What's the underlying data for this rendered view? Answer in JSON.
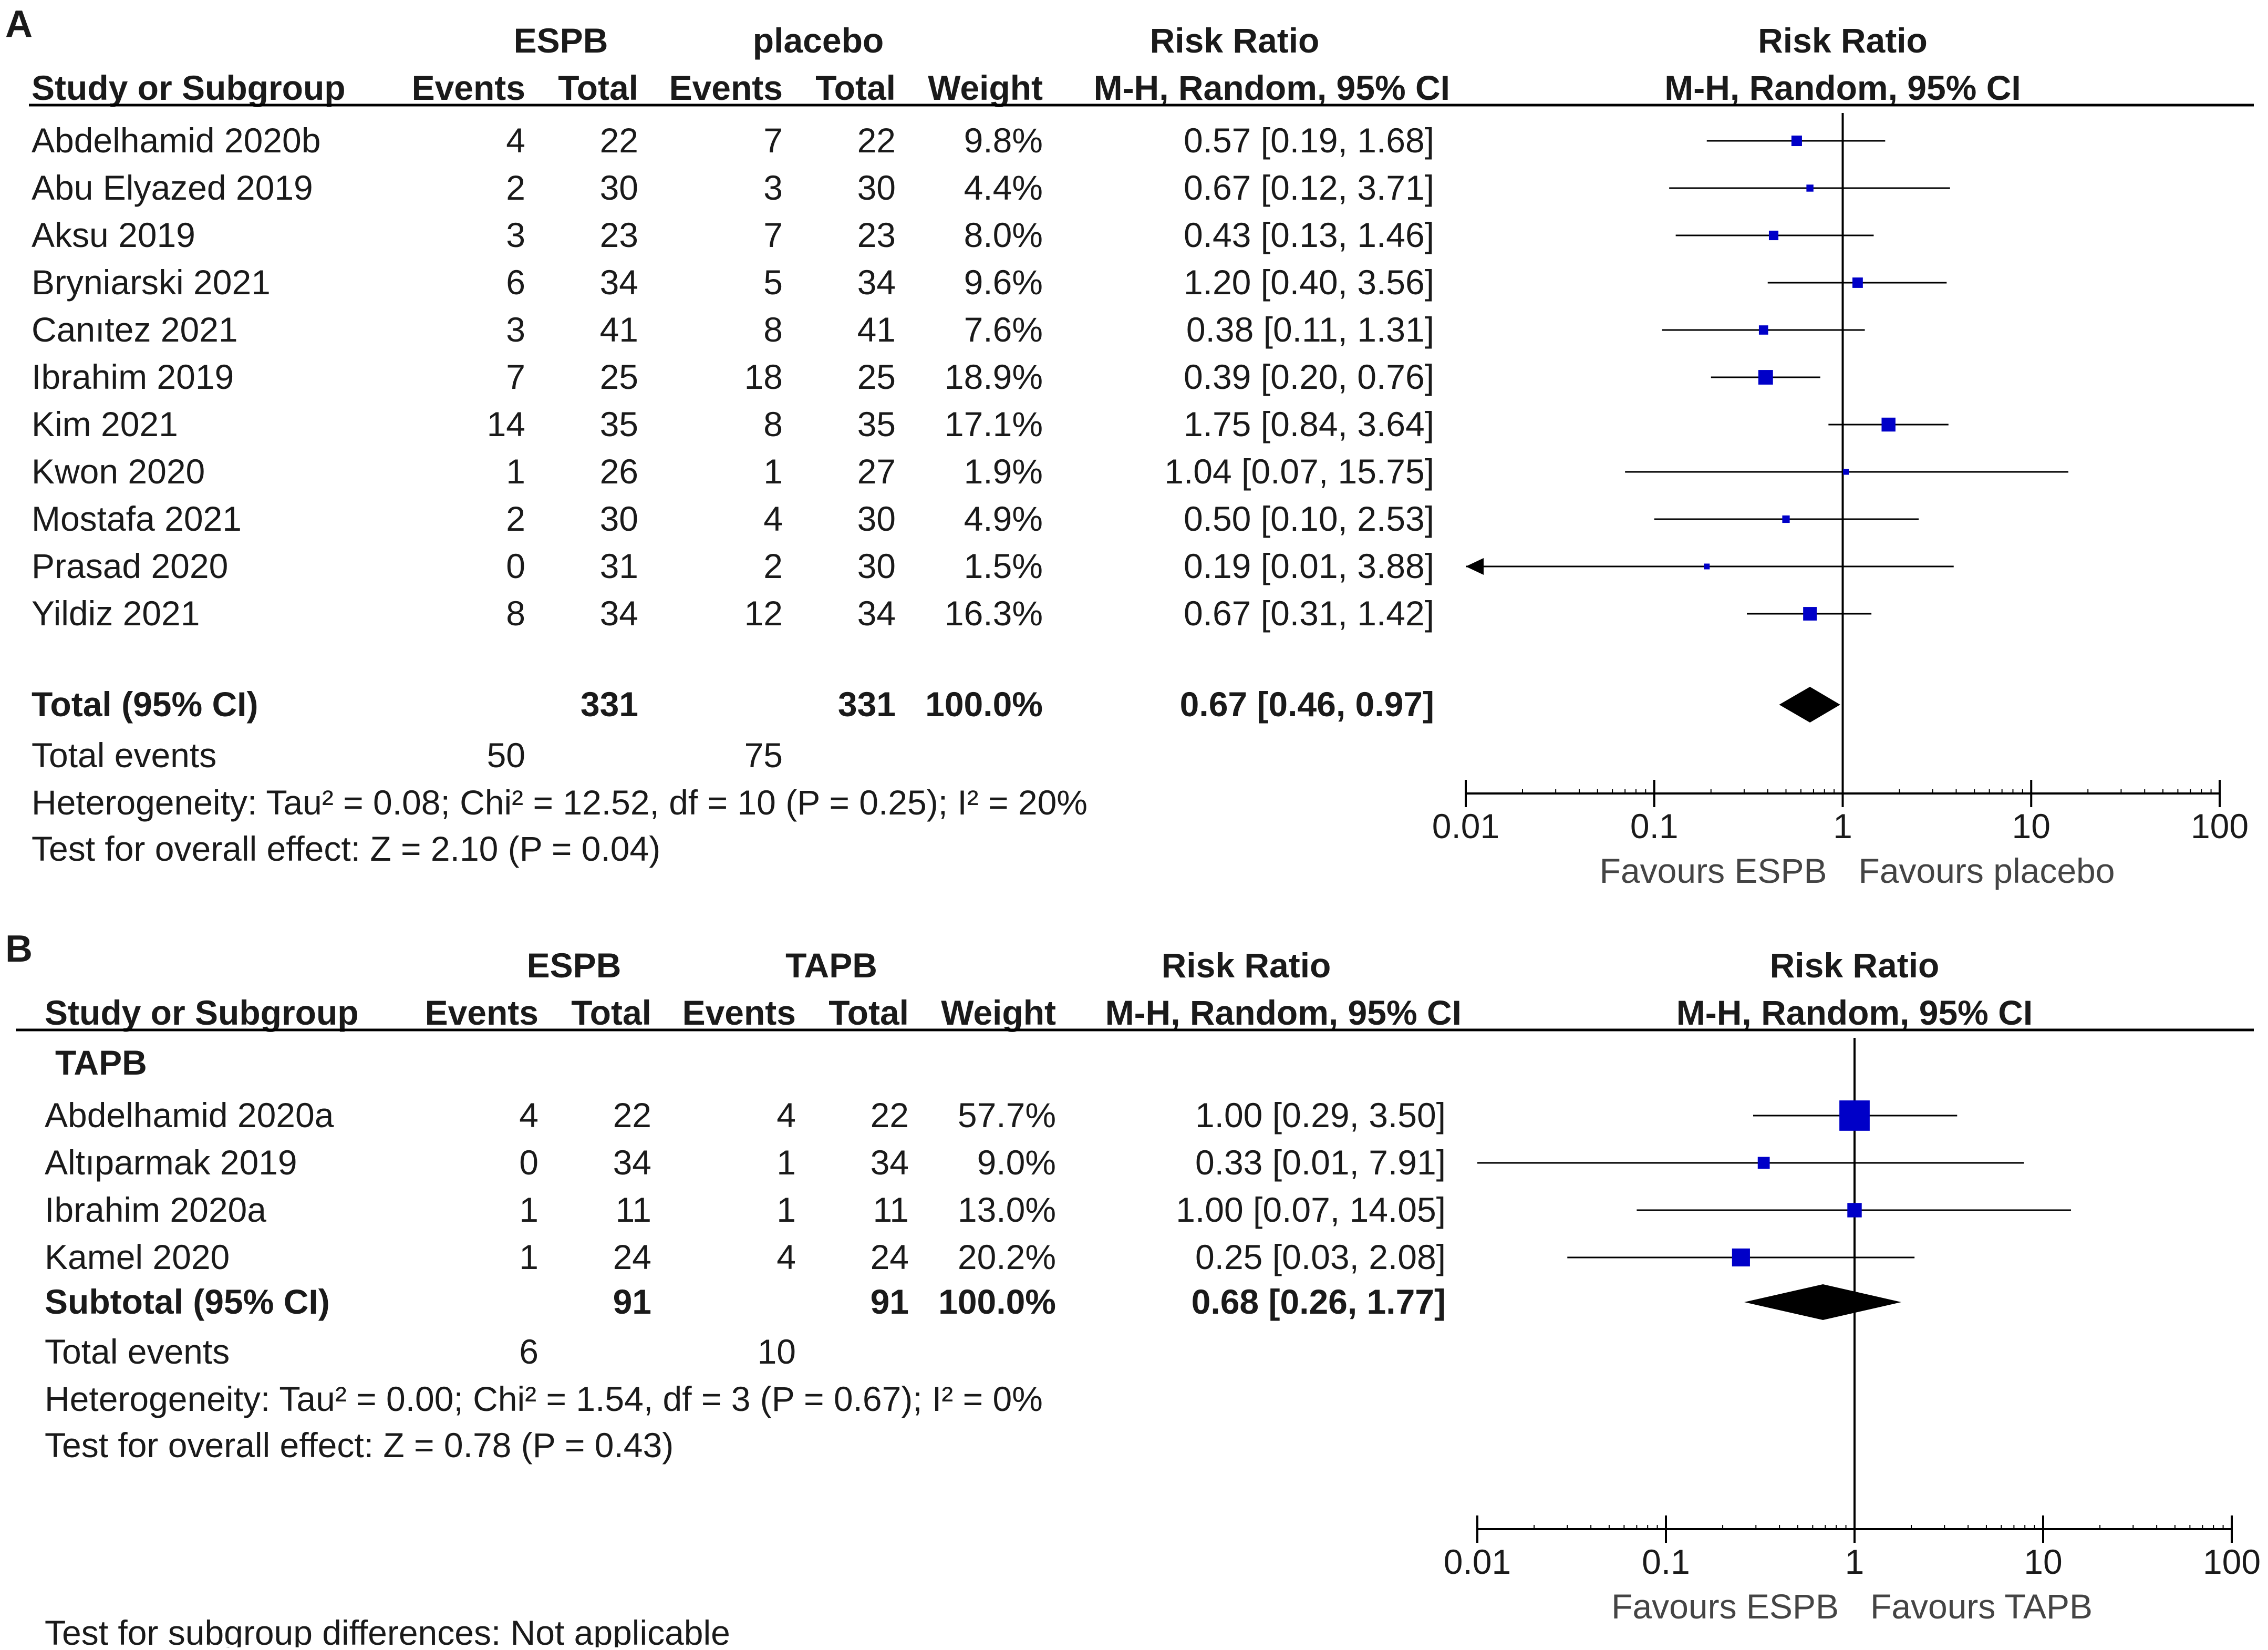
{
  "panels": [
    {
      "label": "A",
      "group1_name": "ESPB",
      "group2_name": "placebo",
      "rr_title": "Risk Ratio",
      "plot_title": "Risk Ratio",
      "headers": {
        "study": "Study or Subgroup",
        "events": "Events",
        "total": "Total",
        "weight": "Weight",
        "method": "M-H, Random, 95% CI",
        "plot_method": "M-H, Random, 95% CI"
      },
      "subgroup_label": "",
      "rows": [
        {
          "study": "Abdelhamid 2020b",
          "e1": "4",
          "t1": "22",
          "e2": "7",
          "t2": "22",
          "weight": "9.8%",
          "ci": "0.57 [0.19, 1.68]",
          "rr": 0.57,
          "lo": 0.19,
          "hi": 1.68,
          "w": 9.8
        },
        {
          "study": "Abu Elyazed 2019",
          "e1": "2",
          "t1": "30",
          "e2": "3",
          "t2": "30",
          "weight": "4.4%",
          "ci": "0.67 [0.12, 3.71]",
          "rr": 0.67,
          "lo": 0.12,
          "hi": 3.71,
          "w": 4.4
        },
        {
          "study": "Aksu 2019",
          "e1": "3",
          "t1": "23",
          "e2": "7",
          "t2": "23",
          "weight": "8.0%",
          "ci": "0.43 [0.13, 1.46]",
          "rr": 0.43,
          "lo": 0.13,
          "hi": 1.46,
          "w": 8.0
        },
        {
          "study": "Bryniarski 2021",
          "e1": "6",
          "t1": "34",
          "e2": "5",
          "t2": "34",
          "weight": "9.6%",
          "ci": "1.20 [0.40, 3.56]",
          "rr": 1.2,
          "lo": 0.4,
          "hi": 3.56,
          "w": 9.6
        },
        {
          "study": "Canıtez 2021",
          "e1": "3",
          "t1": "41",
          "e2": "8",
          "t2": "41",
          "weight": "7.6%",
          "ci": "0.38 [0.11, 1.31]",
          "rr": 0.38,
          "lo": 0.11,
          "hi": 1.31,
          "w": 7.6
        },
        {
          "study": "Ibrahim 2019",
          "e1": "7",
          "t1": "25",
          "e2": "18",
          "t2": "25",
          "weight": "18.9%",
          "ci": "0.39 [0.20, 0.76]",
          "rr": 0.39,
          "lo": 0.2,
          "hi": 0.76,
          "w": 18.9
        },
        {
          "study": "Kim 2021",
          "e1": "14",
          "t1": "35",
          "e2": "8",
          "t2": "35",
          "weight": "17.1%",
          "ci": "1.75 [0.84, 3.64]",
          "rr": 1.75,
          "lo": 0.84,
          "hi": 3.64,
          "w": 17.1
        },
        {
          "study": "Kwon 2020",
          "e1": "1",
          "t1": "26",
          "e2": "1",
          "t2": "27",
          "weight": "1.9%",
          "ci": "1.04 [0.07, 15.75]",
          "rr": 1.04,
          "lo": 0.07,
          "hi": 15.75,
          "w": 1.9
        },
        {
          "study": "Mostafa 2021",
          "e1": "2",
          "t1": "30",
          "e2": "4",
          "t2": "30",
          "weight": "4.9%",
          "ci": "0.50 [0.10, 2.53]",
          "rr": 0.5,
          "lo": 0.1,
          "hi": 2.53,
          "w": 4.9
        },
        {
          "study": "Prasad 2020",
          "e1": "0",
          "t1": "31",
          "e2": "2",
          "t2": "30",
          "weight": "1.5%",
          "ci": "0.19 [0.01, 3.88]",
          "rr": 0.19,
          "lo": 0.01,
          "hi": 3.88,
          "w": 1.5
        },
        {
          "study": "Yildiz 2021",
          "e1": "8",
          "t1": "34",
          "e2": "12",
          "t2": "34",
          "weight": "16.3%",
          "ci": "0.67 [0.31, 1.42]",
          "rr": 0.67,
          "lo": 0.31,
          "hi": 1.42,
          "w": 16.3
        }
      ],
      "total": {
        "label": "Total (95% CI)",
        "t1": "331",
        "t2": "331",
        "weight": "100.0%",
        "ci": "0.67 [0.46, 0.97]",
        "rr": 0.67,
        "lo": 0.46,
        "hi": 0.97
      },
      "total_events": {
        "label": "Total events",
        "e1": "50",
        "e2": "75"
      },
      "heterogeneity": "Heterogeneity: Tau² = 0.08; Chi² = 12.52, df = 10 (P = 0.25); I² = 20%",
      "overall_effect": "Test for overall effect: Z = 2.10 (P = 0.04)",
      "favours_left": "Favours ESPB",
      "favours_right": "Favours placebo",
      "ticks": [
        "0.01",
        "0.1",
        "1",
        "10",
        "100"
      ]
    },
    {
      "label": "B",
      "group1_name": "ESPB",
      "group2_name": "TAPB",
      "rr_title": "Risk Ratio",
      "plot_title": "Risk Ratio",
      "headers": {
        "study": "Study or Subgroup",
        "events": "Events",
        "total": "Total",
        "weight": "Weight",
        "method": "M-H, Random, 95% CI",
        "plot_method": "M-H, Random, 95% CI"
      },
      "subgroup_label": "TAPB",
      "rows": [
        {
          "study": "Abdelhamid 2020a",
          "e1": "4",
          "t1": "22",
          "e2": "4",
          "t2": "22",
          "weight": "57.7%",
          "ci": "1.00 [0.29, 3.50]",
          "rr": 1.0,
          "lo": 0.29,
          "hi": 3.5,
          "w": 57.7
        },
        {
          "study": "Altıparmak 2019",
          "e1": "0",
          "t1": "34",
          "e2": "1",
          "t2": "34",
          "weight": "9.0%",
          "ci": "0.33 [0.01, 7.91]",
          "rr": 0.33,
          "lo": 0.01,
          "hi": 7.91,
          "w": 9.0
        },
        {
          "study": "Ibrahim 2020a",
          "e1": "1",
          "t1": "11",
          "e2": "1",
          "t2": "11",
          "weight": "13.0%",
          "ci": "1.00 [0.07, 14.05]",
          "rr": 1.0,
          "lo": 0.07,
          "hi": 14.05,
          "w": 13.0
        },
        {
          "study": "Kamel 2020",
          "e1": "1",
          "t1": "24",
          "e2": "4",
          "t2": "24",
          "weight": "20.2%",
          "ci": "0.25 [0.03, 2.08]",
          "rr": 0.25,
          "lo": 0.03,
          "hi": 2.08,
          "w": 20.2
        }
      ],
      "total": {
        "label": "Subtotal (95% CI)",
        "t1": "91",
        "t2": "91",
        "weight": "100.0%",
        "ci": "0.68 [0.26, 1.77]",
        "rr": 0.68,
        "lo": 0.26,
        "hi": 1.77
      },
      "total_events": {
        "label": "Total events",
        "e1": "6",
        "e2": "10"
      },
      "heterogeneity": "Heterogeneity: Tau² = 0.00; Chi² = 1.54, df = 3 (P = 0.67); I² = 0%",
      "overall_effect": "Test for overall effect: Z = 0.78 (P = 0.43)",
      "favours_left": "Favours ESPB",
      "favours_right": "Favours TAPB",
      "ticks": [
        "0.01",
        "0.1",
        "1",
        "10",
        "100"
      ]
    }
  ],
  "subgroup_differences": "Test for subgroup differences: Not applicable",
  "chart_data": {
    "type": "forest",
    "scale": "log",
    "xlim": [
      0.01,
      100
    ],
    "reference_line": 1,
    "colors": {
      "study_marker": "#0000c8",
      "diamond": "#000000",
      "line": "#000000"
    },
    "series": [
      {
        "name": "A: ESPB vs placebo",
        "categories": [
          "Abdelhamid 2020b",
          "Abu Elyazed 2019",
          "Aksu 2019",
          "Bryniarski 2021",
          "Canıtez 2021",
          "Ibrahim 2019",
          "Kim 2021",
          "Kwon 2020",
          "Mostafa 2021",
          "Prasad 2020",
          "Yildiz 2021"
        ],
        "rr": [
          0.57,
          0.67,
          0.43,
          1.2,
          0.38,
          0.39,
          1.75,
          1.04,
          0.5,
          0.19,
          0.67
        ],
        "pooled": 0.67
      },
      {
        "name": "B: ESPB vs TAPB",
        "categories": [
          "Abdelhamid 2020a",
          "Altıparmak 2019",
          "Ibrahim 2020a",
          "Kamel 2020"
        ],
        "rr": [
          1.0,
          0.33,
          1.0,
          0.25
        ],
        "pooled": 0.68
      }
    ]
  }
}
